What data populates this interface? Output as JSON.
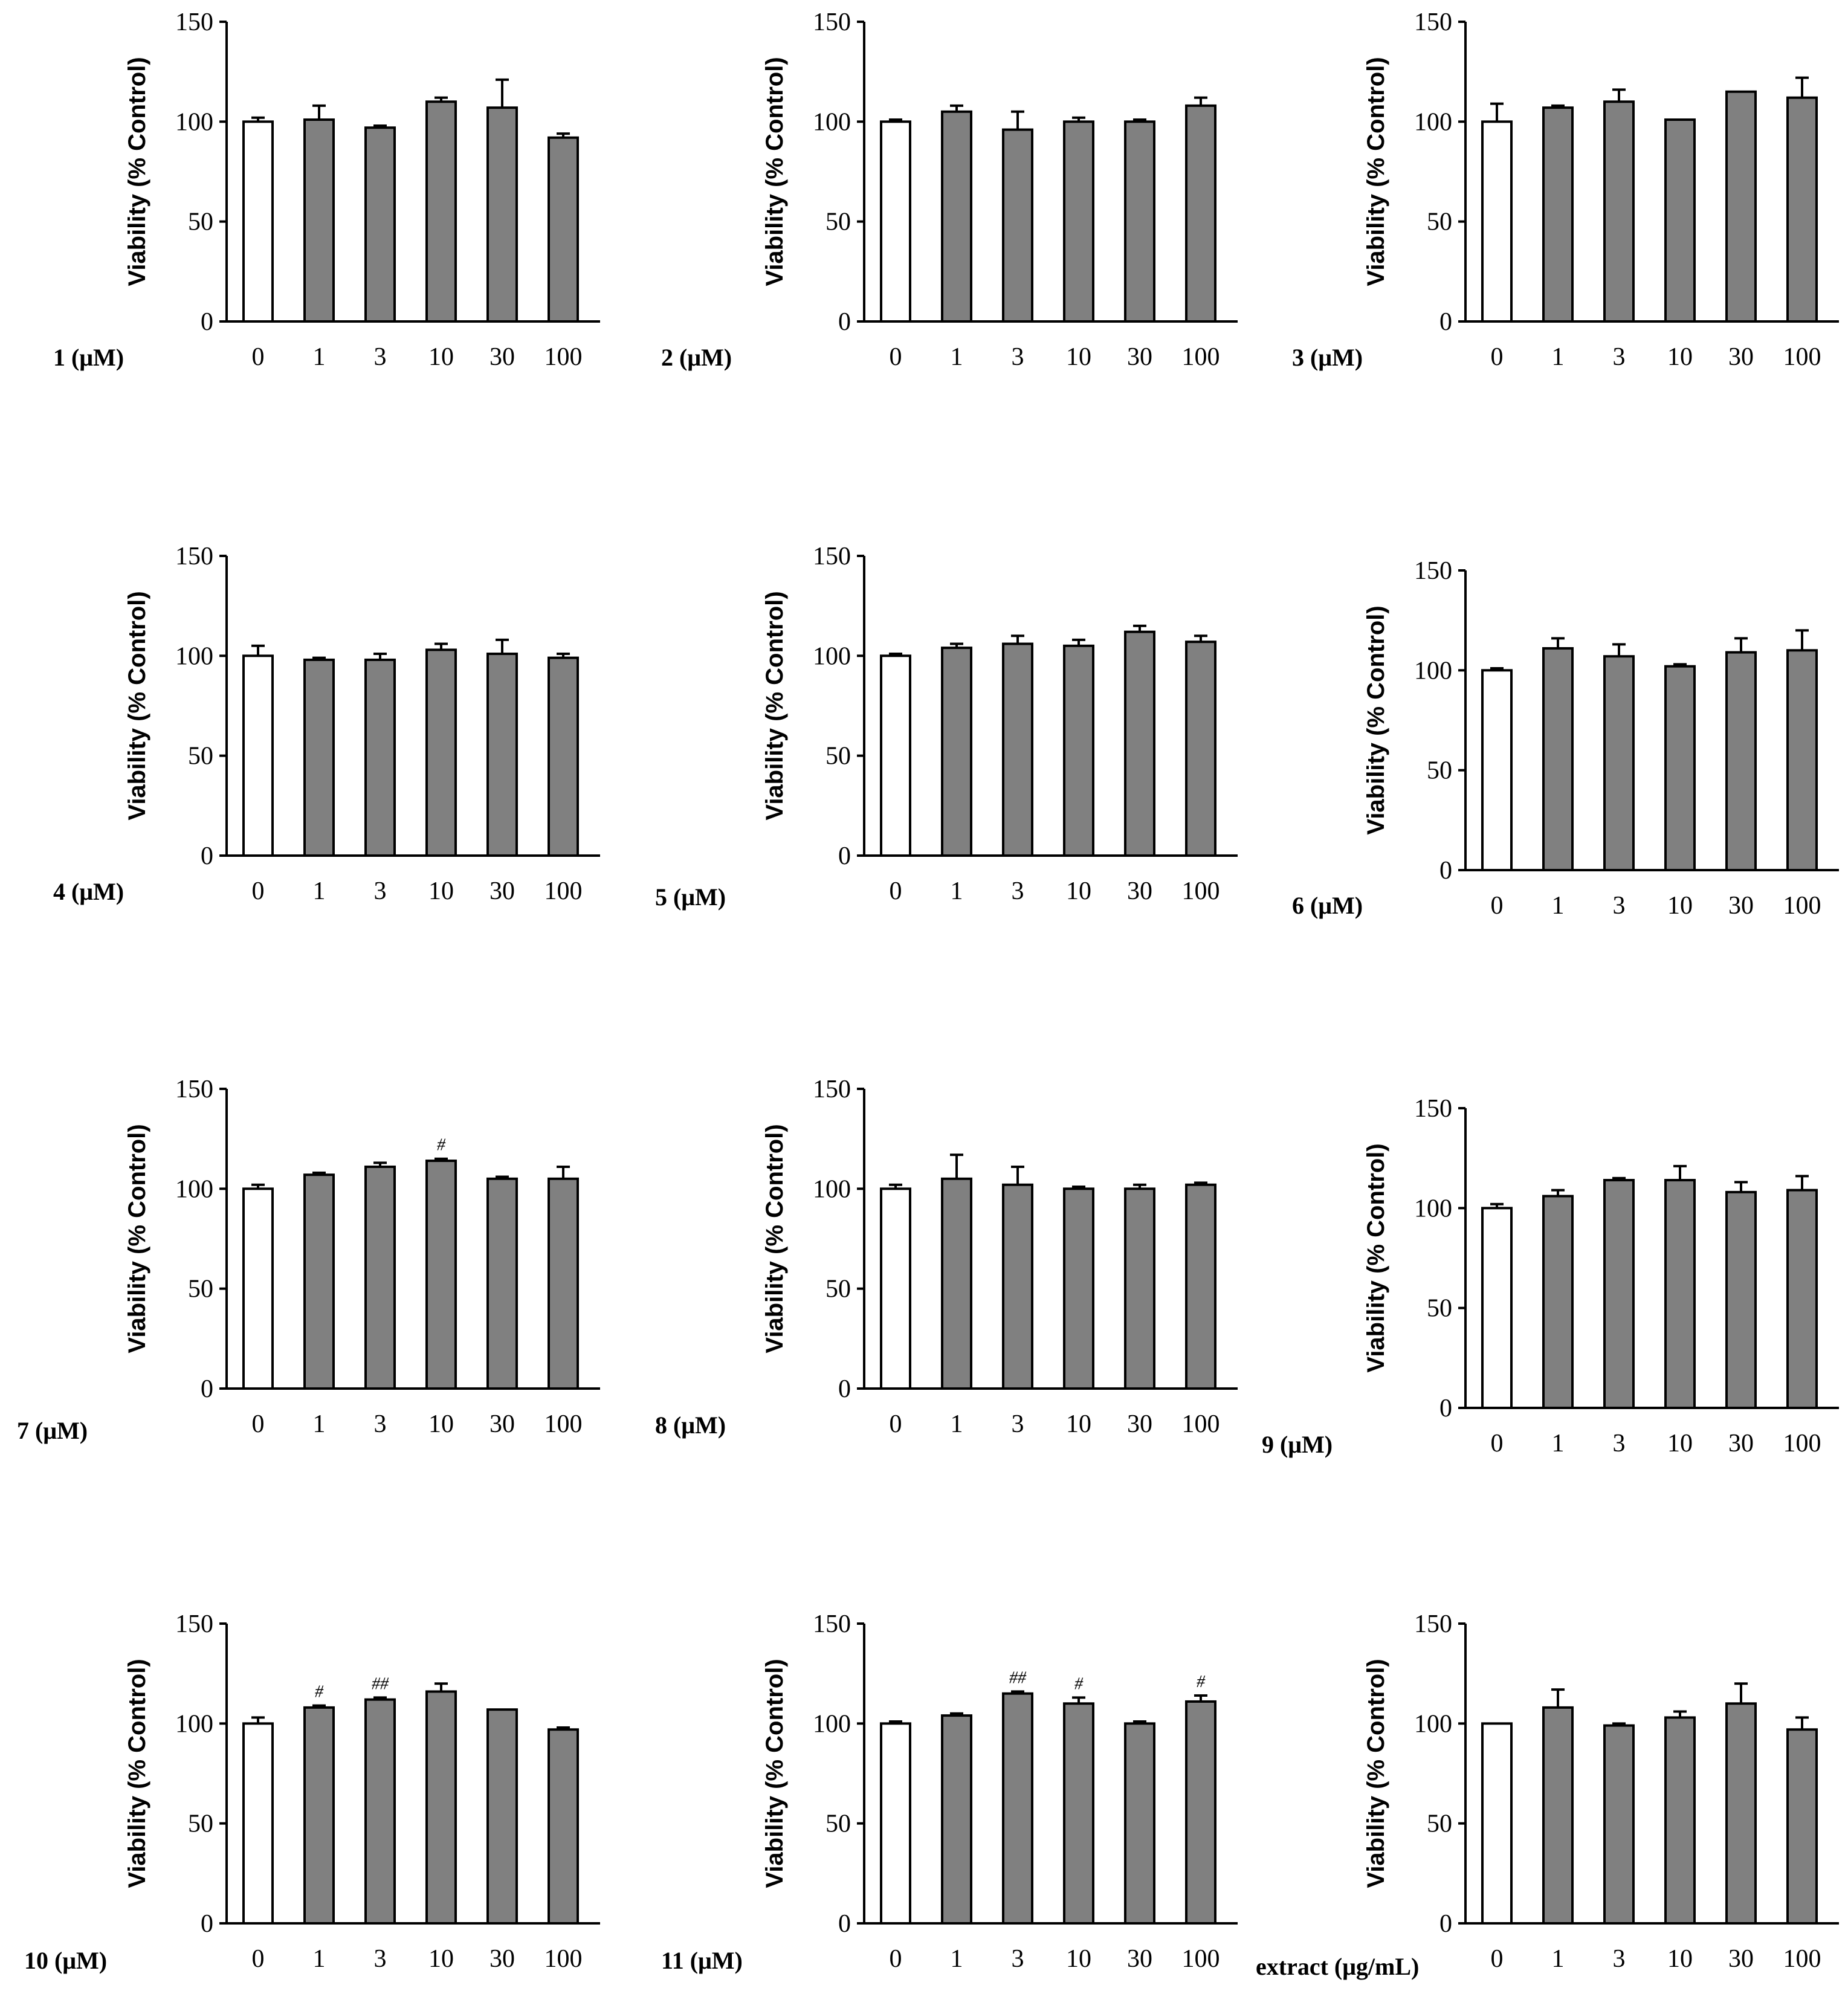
{
  "colors": {
    "control_fill": "#ffffff",
    "treated_fill": "#808080",
    "stroke": "#000000"
  },
  "chart_data": [
    {
      "type": "bar",
      "panel": "1",
      "condition_label": "1 (μM)",
      "ylabel": "Viability (% Control)",
      "categories": [
        "0",
        "1",
        "3",
        "10",
        "30",
        "100"
      ],
      "values": [
        100,
        101,
        97,
        110,
        107,
        92
      ],
      "errors": [
        2,
        7,
        1,
        2,
        14,
        2
      ],
      "annotations": [
        "",
        "",
        "",
        "",
        "",
        ""
      ],
      "ylim": [
        0,
        150
      ],
      "yticks": [
        "0",
        "50",
        "100",
        "150"
      ]
    },
    {
      "type": "bar",
      "panel": "2",
      "condition_label": "2 (μM)",
      "ylabel": "Viability (% Control)",
      "categories": [
        "0",
        "1",
        "3",
        "10",
        "30",
        "100"
      ],
      "values": [
        100,
        105,
        96,
        100,
        100,
        108
      ],
      "errors": [
        1,
        3,
        9,
        2,
        1,
        4
      ],
      "annotations": [
        "",
        "",
        "",
        "",
        "",
        ""
      ],
      "ylim": [
        0,
        150
      ],
      "yticks": [
        "0",
        "50",
        "100",
        "150"
      ]
    },
    {
      "type": "bar",
      "panel": "3",
      "condition_label": "3 (μM)",
      "ylabel": "Viability (% Control)",
      "categories": [
        "0",
        "1",
        "3",
        "10",
        "30",
        "100"
      ],
      "values": [
        100,
        107,
        110,
        101,
        115,
        112
      ],
      "errors": [
        9,
        1,
        6,
        0,
        0,
        10
      ],
      "annotations": [
        "",
        "",
        "",
        "",
        "",
        ""
      ],
      "ylim": [
        0,
        150
      ],
      "yticks": [
        "0",
        "50",
        "100",
        "150"
      ]
    },
    {
      "type": "bar",
      "panel": "4",
      "condition_label": "4 (μM)",
      "ylabel": "Viability (% Control)",
      "categories": [
        "0",
        "1",
        "3",
        "10",
        "30",
        "100"
      ],
      "values": [
        100,
        98,
        98,
        103,
        101,
        99
      ],
      "errors": [
        5,
        1,
        3,
        3,
        7,
        2
      ],
      "annotations": [
        "",
        "",
        "",
        "",
        "",
        ""
      ],
      "ylim": [
        0,
        150
      ],
      "yticks": [
        "0",
        "50",
        "100",
        "150"
      ]
    },
    {
      "type": "bar",
      "panel": "5",
      "condition_label": "5 (μM)",
      "ylabel": "Viability (% Control)",
      "categories": [
        "0",
        "1",
        "3",
        "10",
        "30",
        "100"
      ],
      "values": [
        100,
        104,
        106,
        105,
        112,
        107
      ],
      "errors": [
        1,
        2,
        4,
        3,
        3,
        3
      ],
      "annotations": [
        "",
        "",
        "",
        "",
        "",
        ""
      ],
      "ylim": [
        0,
        150
      ],
      "yticks": [
        "0",
        "50",
        "100",
        "150"
      ]
    },
    {
      "type": "bar",
      "panel": "6",
      "condition_label": "6 (μM)",
      "ylabel": "Viability (% Control)",
      "categories": [
        "0",
        "1",
        "3",
        "10",
        "30",
        "100"
      ],
      "values": [
        100,
        111,
        107,
        102,
        109,
        110
      ],
      "errors": [
        1,
        5,
        6,
        1,
        7,
        10
      ],
      "annotations": [
        "",
        "",
        "",
        "",
        "",
        ""
      ],
      "ylim": [
        0,
        150
      ],
      "yticks": [
        "0",
        "50",
        "100",
        "150"
      ]
    },
    {
      "type": "bar",
      "panel": "7",
      "condition_label": "7 (μM)",
      "ylabel": "Viability (% Control)",
      "categories": [
        "0",
        "1",
        "3",
        "10",
        "30",
        "100"
      ],
      "values": [
        100,
        107,
        111,
        114,
        105,
        105
      ],
      "errors": [
        2,
        1,
        2,
        1,
        1,
        6
      ],
      "annotations": [
        "",
        "",
        "",
        "#",
        "",
        ""
      ],
      "ylim": [
        0,
        150
      ],
      "yticks": [
        "0",
        "50",
        "100",
        "150"
      ]
    },
    {
      "type": "bar",
      "panel": "8",
      "condition_label": "8 (μM)",
      "ylabel": "Viability (% Control)",
      "categories": [
        "0",
        "1",
        "3",
        "10",
        "30",
        "100"
      ],
      "values": [
        100,
        105,
        102,
        100,
        100,
        102
      ],
      "errors": [
        2,
        12,
        9,
        1,
        2,
        1
      ],
      "annotations": [
        "",
        "",
        "",
        "",
        "",
        ""
      ],
      "ylim": [
        0,
        150
      ],
      "yticks": [
        "0",
        "50",
        "100",
        "150"
      ]
    },
    {
      "type": "bar",
      "panel": "9",
      "condition_label": "9 (μM)",
      "ylabel": "Viability (% Control)",
      "categories": [
        "0",
        "1",
        "3",
        "10",
        "30",
        "100"
      ],
      "values": [
        100,
        106,
        114,
        114,
        108,
        109
      ],
      "errors": [
        2,
        3,
        1,
        7,
        5,
        7
      ],
      "annotations": [
        "",
        "",
        "",
        "",
        "",
        ""
      ],
      "ylim": [
        0,
        150
      ],
      "yticks": [
        "0",
        "50",
        "100",
        "150"
      ]
    },
    {
      "type": "bar",
      "panel": "10",
      "condition_label": "10 (μM)",
      "ylabel": "Viability (% Control)",
      "categories": [
        "0",
        "1",
        "3",
        "10",
        "30",
        "100"
      ],
      "values": [
        100,
        108,
        112,
        116,
        107,
        97
      ],
      "errors": [
        3,
        1,
        1,
        4,
        0,
        1
      ],
      "annotations": [
        "",
        "#",
        "##",
        "",
        "",
        ""
      ],
      "ylim": [
        0,
        150
      ],
      "yticks": [
        "0",
        "50",
        "100",
        "150"
      ]
    },
    {
      "type": "bar",
      "panel": "11",
      "condition_label": "11 (μM)",
      "ylabel": "Viability (% Control)",
      "categories": [
        "0",
        "1",
        "3",
        "10",
        "30",
        "100"
      ],
      "values": [
        100,
        104,
        115,
        110,
        100,
        111
      ],
      "errors": [
        1,
        1,
        1,
        3,
        1,
        3
      ],
      "annotations": [
        "",
        "",
        "##",
        "#",
        "",
        "#"
      ],
      "ylim": [
        0,
        150
      ],
      "yticks": [
        "0",
        "50",
        "100",
        "150"
      ]
    },
    {
      "type": "bar",
      "panel": "extract",
      "condition_label": "extract (μg/mL)",
      "ylabel": "Viability (% Control)",
      "categories": [
        "0",
        "1",
        "3",
        "10",
        "30",
        "100"
      ],
      "values": [
        100,
        108,
        99,
        103,
        110,
        97
      ],
      "errors": [
        0,
        9,
        1,
        3,
        10,
        6
      ],
      "annotations": [
        "",
        "",
        "",
        "",
        "",
        ""
      ],
      "ylim": [
        0,
        150
      ],
      "yticks": [
        "0",
        "50",
        "100",
        "150"
      ]
    }
  ]
}
